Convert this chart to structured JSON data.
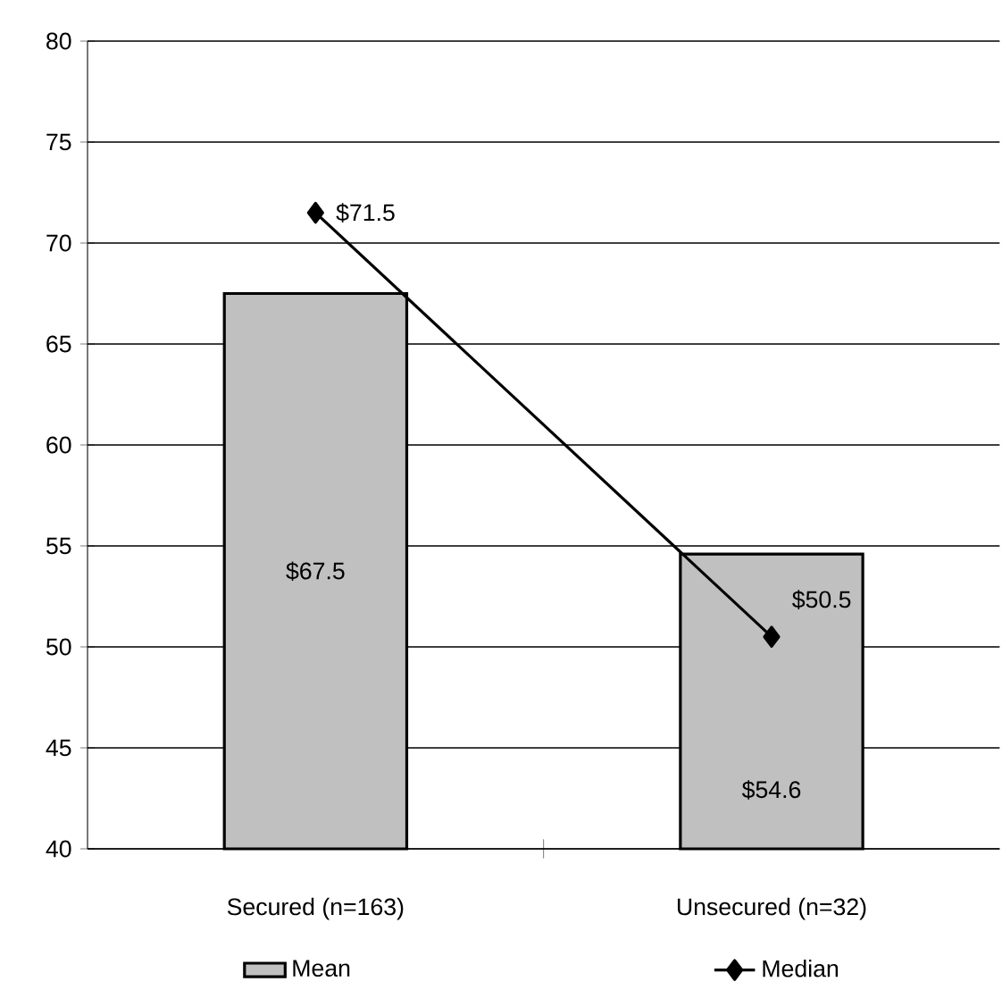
{
  "chart_data": {
    "type": "bar",
    "categories": [
      "Secured (n=163)",
      "Unsecured (n=32)"
    ],
    "series": [
      {
        "name": "Mean",
        "color": "#c0c0c0",
        "values": [
          67.5,
          54.6
        ],
        "value_labels": [
          "$67.5",
          "$54.6"
        ]
      },
      {
        "name": "Median",
        "type": "line",
        "color": "#000000",
        "values": [
          71.5,
          50.5
        ],
        "value_labels": [
          "$71.5",
          "$50.5"
        ]
      }
    ],
    "marker": "diamond",
    "ylim": [
      40,
      80
    ],
    "yticks": [
      40,
      45,
      50,
      55,
      60,
      65,
      70,
      75,
      80
    ],
    "grid": "y",
    "legend": "bottom"
  }
}
